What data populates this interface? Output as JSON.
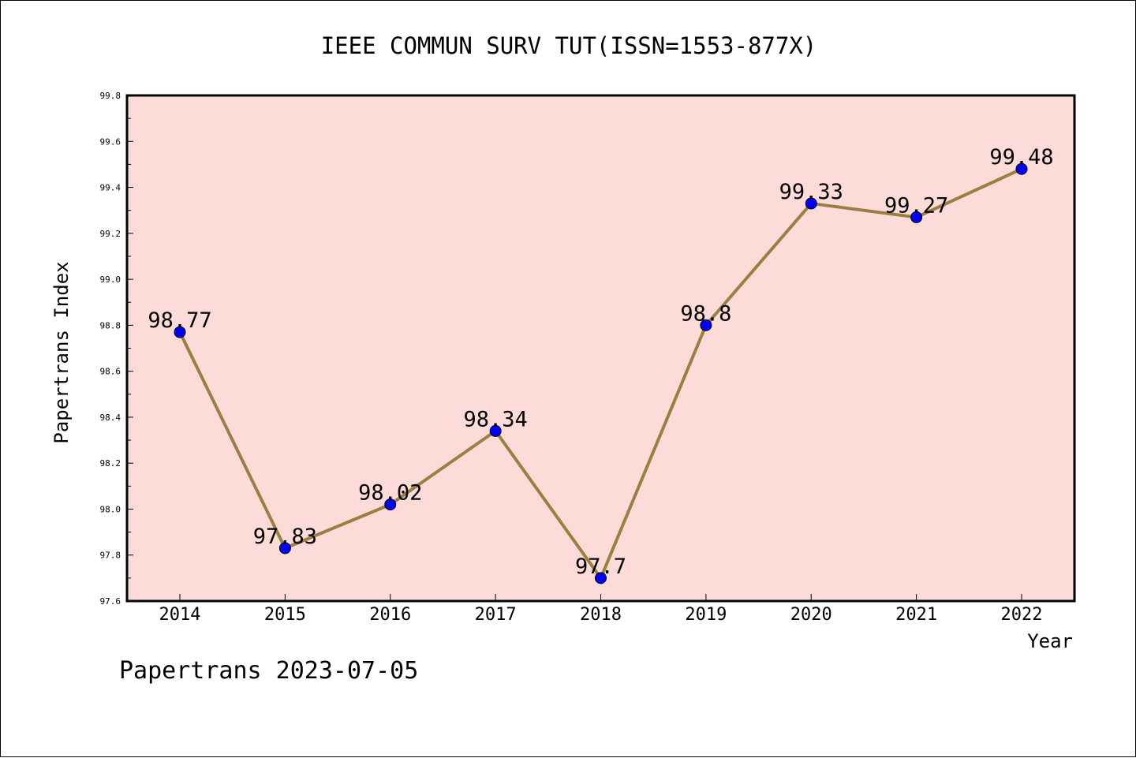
{
  "footer": {
    "credit": "Papertrans 2023-07-05"
  },
  "chart_data": {
    "type": "line",
    "title": "IEEE COMMUN SURV TUT(ISSN=1553-877X)",
    "xlabel": "Year",
    "ylabel": "Papertrans Index",
    "categories": [
      "2014",
      "2015",
      "2016",
      "2017",
      "2018",
      "2019",
      "2020",
      "2021",
      "2022"
    ],
    "series": [
      {
        "values": [
          98.77,
          97.83,
          98.02,
          98.34,
          97.7,
          98.8,
          99.33,
          99.27,
          99.48
        ],
        "data_labels": [
          "98.77",
          "97.83",
          "98.02",
          "98.34",
          "97.7",
          "98.8",
          "99.33",
          "99.27",
          "99.48"
        ]
      }
    ],
    "ylim": [
      97.6,
      99.8
    ],
    "yticks": [
      "97.6",
      "97.8",
      "98.0",
      "98.2",
      "98.4",
      "98.6",
      "98.8",
      "99.0",
      "99.2",
      "99.4",
      "99.6",
      "99.8"
    ],
    "grid": false,
    "colors": {
      "plot_background": "#fddbd9",
      "line": "#9a8040",
      "marker": "#0000ff"
    }
  }
}
